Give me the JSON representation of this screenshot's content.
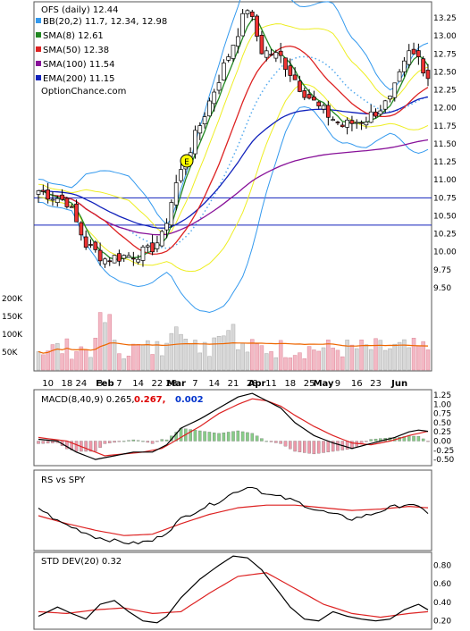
{
  "chart_data": {
    "type": "candlestick",
    "main": {
      "title": "OFS (daily) 12.44",
      "legend": [
        {
          "label": "BB(20,2) 11.7, 12.34, 12.98",
          "color": "#3399ee"
        },
        {
          "label": "SMA(8) 12.61",
          "color": "#228822"
        },
        {
          "label": "SMA(50) 12.38",
          "color": "#dd2222"
        },
        {
          "label": "SMA(100) 11.54",
          "color": "#881199"
        },
        {
          "label": "EMA(200) 11.15",
          "color": "#1122bb"
        }
      ],
      "watermark": "OptionChance.com",
      "earnings_marker": "E",
      "price_ticks": [
        "13.25",
        "13.00",
        "12.75",
        "12.50",
        "12.25",
        "12.00",
        "11.75",
        "11.50",
        "11.25",
        "11.00",
        "10.75",
        "10.50",
        "10.25",
        "10.00",
        "9.75",
        "9.50"
      ],
      "price_ylim": [
        9.35,
        13.45
      ],
      "volume_ticks": [
        "200K",
        "150K",
        "100K",
        "50K"
      ],
      "horizontal_lines": [
        10.75,
        10.37
      ],
      "close_anchors": [
        [
          0,
          10.85
        ],
        [
          6,
          10.7
        ],
        [
          10,
          10.1
        ],
        [
          14,
          9.9
        ],
        [
          19,
          9.95
        ],
        [
          23,
          10.0
        ],
        [
          26,
          10.2
        ],
        [
          29,
          10.95
        ],
        [
          33,
          11.6
        ],
        [
          37,
          12.25
        ],
        [
          41,
          12.9
        ],
        [
          44,
          13.4
        ],
        [
          47,
          12.8
        ],
        [
          51,
          12.7
        ],
        [
          55,
          12.3
        ],
        [
          59,
          12.0
        ],
        [
          64,
          11.75
        ],
        [
          69,
          11.85
        ],
        [
          74,
          12.1
        ],
        [
          78,
          12.75
        ],
        [
          80,
          12.7
        ],
        [
          82,
          12.44
        ]
      ],
      "price_range_months": "January – June (daily)"
    },
    "x_axis": {
      "labels": [
        "10",
        "18",
        "24",
        "3",
        "Feb",
        "7",
        "14",
        "22",
        "28",
        "Mar",
        "7",
        "14",
        "21",
        "28",
        "Apr",
        "11",
        "18",
        "25",
        "May",
        "9",
        "16",
        "23",
        "Jun"
      ]
    },
    "macd": {
      "label": "MACD(8,40,9) 0.265,",
      "value1": "0.267,",
      "value2": "0.002",
      "value1_color": "#dd0000",
      "value2_color": "#0033cc",
      "ticks": [
        "1.25",
        "1.00",
        "0.75",
        "0.50",
        "0.25",
        "0.00",
        "-0.25",
        "-0.50"
      ],
      "ylim": [
        -0.62,
        1.35
      ],
      "macd_anchors": [
        [
          0,
          0.05
        ],
        [
          4,
          0.0
        ],
        [
          8,
          -0.3
        ],
        [
          12,
          -0.5
        ],
        [
          16,
          -0.4
        ],
        [
          20,
          -0.3
        ],
        [
          24,
          -0.3
        ],
        [
          27,
          -0.1
        ],
        [
          30,
          0.35
        ],
        [
          34,
          0.6
        ],
        [
          38,
          0.9
        ],
        [
          42,
          1.2
        ],
        [
          45,
          1.3
        ],
        [
          48,
          1.1
        ],
        [
          51,
          0.9
        ],
        [
          54,
          0.5
        ],
        [
          58,
          0.15
        ],
        [
          62,
          -0.05
        ],
        [
          66,
          -0.2
        ],
        [
          69,
          -0.1
        ],
        [
          72,
          0.0
        ],
        [
          75,
          0.1
        ],
        [
          78,
          0.25
        ],
        [
          80,
          0.3
        ],
        [
          82,
          0.265
        ]
      ],
      "signal_anchors": [
        [
          0,
          0.1
        ],
        [
          6,
          0.0
        ],
        [
          10,
          -0.2
        ],
        [
          14,
          -0.4
        ],
        [
          18,
          -0.35
        ],
        [
          22,
          -0.3
        ],
        [
          26,
          -0.2
        ],
        [
          30,
          0.1
        ],
        [
          34,
          0.4
        ],
        [
          38,
          0.75
        ],
        [
          42,
          1.0
        ],
        [
          45,
          1.15
        ],
        [
          48,
          1.1
        ],
        [
          51,
          0.95
        ],
        [
          54,
          0.7
        ],
        [
          58,
          0.4
        ],
        [
          62,
          0.15
        ],
        [
          66,
          -0.05
        ],
        [
          70,
          -0.1
        ],
        [
          74,
          0.0
        ],
        [
          78,
          0.15
        ],
        [
          82,
          0.267
        ]
      ]
    },
    "rs": {
      "label": "RS vs SPY",
      "rs_anchors": [
        [
          0,
          0.62
        ],
        [
          4,
          0.42
        ],
        [
          8,
          0.3
        ],
        [
          12,
          0.18
        ],
        [
          16,
          0.12
        ],
        [
          20,
          0.08
        ],
        [
          24,
          0.12
        ],
        [
          27,
          0.25
        ],
        [
          30,
          0.45
        ],
        [
          34,
          0.6
        ],
        [
          38,
          0.72
        ],
        [
          42,
          0.88
        ],
        [
          45,
          0.95
        ],
        [
          48,
          0.82
        ],
        [
          51,
          0.78
        ],
        [
          54,
          0.72
        ],
        [
          58,
          0.6
        ],
        [
          62,
          0.52
        ],
        [
          66,
          0.45
        ],
        [
          70,
          0.52
        ],
        [
          74,
          0.62
        ],
        [
          78,
          0.68
        ],
        [
          82,
          0.55
        ]
      ],
      "avg_anchors": [
        [
          0,
          0.5
        ],
        [
          6,
          0.38
        ],
        [
          12,
          0.28
        ],
        [
          18,
          0.2
        ],
        [
          24,
          0.22
        ],
        [
          30,
          0.38
        ],
        [
          36,
          0.52
        ],
        [
          42,
          0.62
        ],
        [
          48,
          0.66
        ],
        [
          54,
          0.66
        ],
        [
          60,
          0.62
        ],
        [
          66,
          0.58
        ],
        [
          72,
          0.6
        ],
        [
          78,
          0.64
        ],
        [
          82,
          0.62
        ]
      ]
    },
    "std": {
      "label": "STD DEV(20) 0.32",
      "ticks": [
        "0.80",
        "0.60",
        "0.40",
        "0.20"
      ],
      "ylim": [
        0.13,
        0.92
      ],
      "std_anchors": [
        [
          0,
          0.25
        ],
        [
          4,
          0.35
        ],
        [
          7,
          0.28
        ],
        [
          10,
          0.22
        ],
        [
          13,
          0.38
        ],
        [
          16,
          0.42
        ],
        [
          19,
          0.3
        ],
        [
          22,
          0.2
        ],
        [
          25,
          0.18
        ],
        [
          27,
          0.25
        ],
        [
          30,
          0.45
        ],
        [
          34,
          0.65
        ],
        [
          38,
          0.8
        ],
        [
          41,
          0.9
        ],
        [
          44,
          0.88
        ],
        [
          47,
          0.75
        ],
        [
          50,
          0.55
        ],
        [
          53,
          0.35
        ],
        [
          56,
          0.22
        ],
        [
          59,
          0.2
        ],
        [
          62,
          0.3
        ],
        [
          65,
          0.25
        ],
        [
          68,
          0.22
        ],
        [
          71,
          0.2
        ],
        [
          74,
          0.22
        ],
        [
          77,
          0.32
        ],
        [
          80,
          0.38
        ],
        [
          82,
          0.32
        ]
      ],
      "avg_anchors": [
        [
          0,
          0.3
        ],
        [
          6,
          0.28
        ],
        [
          12,
          0.32
        ],
        [
          18,
          0.34
        ],
        [
          24,
          0.28
        ],
        [
          30,
          0.3
        ],
        [
          36,
          0.5
        ],
        [
          42,
          0.68
        ],
        [
          48,
          0.72
        ],
        [
          54,
          0.55
        ],
        [
          60,
          0.38
        ],
        [
          66,
          0.28
        ],
        [
          72,
          0.24
        ],
        [
          78,
          0.28
        ],
        [
          82,
          0.3
        ]
      ]
    }
  }
}
